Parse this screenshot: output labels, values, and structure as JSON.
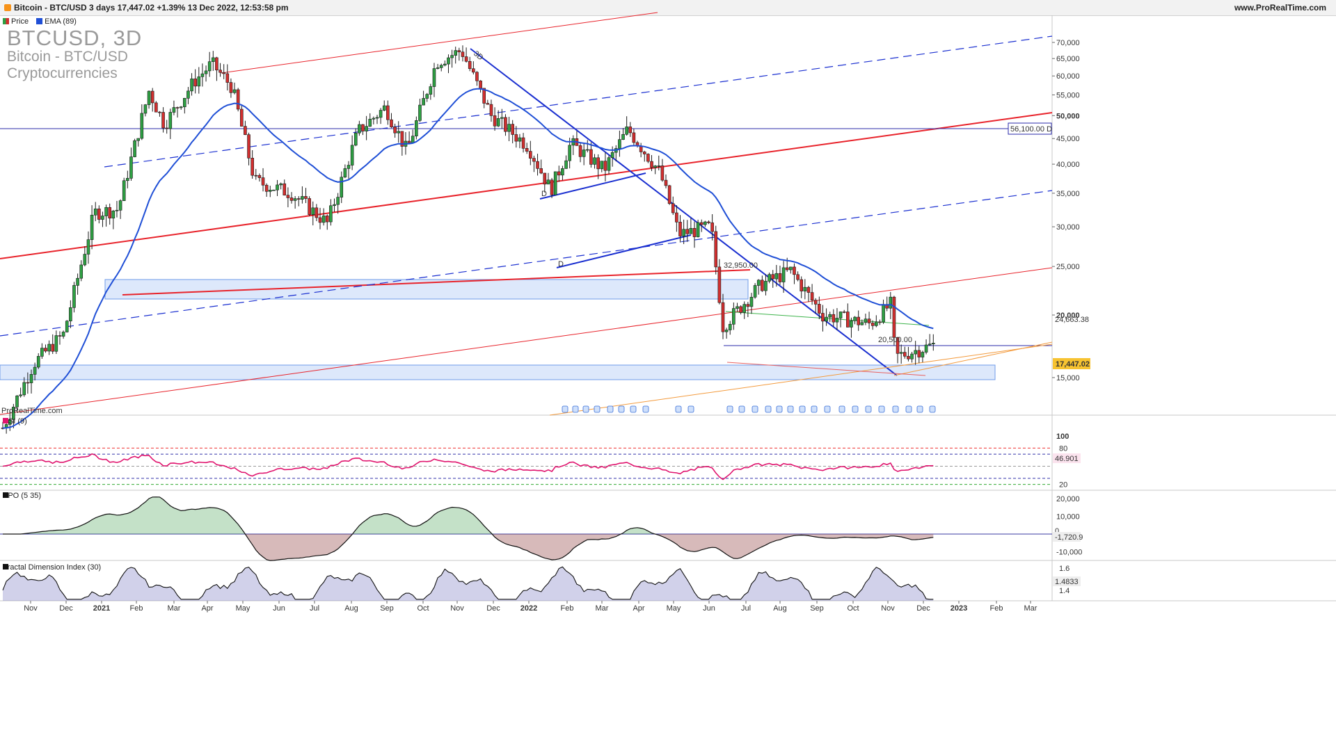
{
  "header": {
    "title": "Bitcoin - BTC/USD 3 days 17,447.02 +1.39% 13 Dec 2022, 12:53:58 pm",
    "site": "www.ProRealTime.com"
  },
  "legend": {
    "price": "Price",
    "ema": "EMA (89)"
  },
  "watermark": {
    "symbol": "BTCUSD, 3D",
    "name": "Bitcoin - BTC/USD",
    "category": "Cryptocurrencies"
  },
  "colors": {
    "up": "#2ea043",
    "down": "#d22f2f",
    "ema": "#1f4fd6",
    "trend_blue": "#1a2fd0",
    "trend_red": "#e8222a",
    "rsi": "#e0146e",
    "zone": "#dde8fb"
  },
  "chart_data": [
    {
      "type": "candlestick",
      "panel": "price",
      "y_scale": "log",
      "ylim": [
        11500,
        72000
      ],
      "yticks": [
        "70,000",
        "65,000",
        "60,000",
        "55,000",
        "50,000",
        "45,000",
        "40,000",
        "35,000",
        "30,000",
        "25,000",
        "20,000",
        "15,000"
      ],
      "xticks": [
        "Nov",
        "Dec",
        "2021",
        "Feb",
        "Mar",
        "Apr",
        "May",
        "Jun",
        "Jul",
        "Aug",
        "Sep",
        "Oct",
        "Nov",
        "Dec",
        "2022",
        "Feb",
        "Mar",
        "Apr",
        "May",
        "Jun",
        "Jul",
        "Aug",
        "Sep",
        "Oct",
        "Nov",
        "Dec",
        "2023",
        "Feb",
        "Mar"
      ],
      "key_closes": [
        {
          "date": "2020-10-20",
          "close": 11900
        },
        {
          "date": "2020-11-15",
          "close": 16000
        },
        {
          "date": "2020-12-10",
          "close": 18300
        },
        {
          "date": "2021-01-05",
          "close": 32000
        },
        {
          "date": "2021-01-25",
          "close": 32500
        },
        {
          "date": "2021-02-20",
          "close": 56000
        },
        {
          "date": "2021-03-05",
          "close": 48000
        },
        {
          "date": "2021-03-30",
          "close": 58500
        },
        {
          "date": "2021-04-14",
          "close": 63500
        },
        {
          "date": "2021-05-01",
          "close": 57000
        },
        {
          "date": "2021-05-20",
          "close": 37000
        },
        {
          "date": "2021-06-20",
          "close": 35000
        },
        {
          "date": "2021-07-20",
          "close": 30500
        },
        {
          "date": "2021-08-15",
          "close": 46500
        },
        {
          "date": "2021-09-07",
          "close": 52000
        },
        {
          "date": "2021-09-25",
          "close": 42500
        },
        {
          "date": "2021-10-20",
          "close": 64000
        },
        {
          "date": "2021-11-10",
          "close": 67500
        },
        {
          "date": "2021-12-05",
          "close": 50000
        },
        {
          "date": "2022-01-05",
          "close": 43500
        },
        {
          "date": "2022-01-24",
          "close": 35500
        },
        {
          "date": "2022-02-10",
          "close": 44000
        },
        {
          "date": "2022-03-10",
          "close": 39000
        },
        {
          "date": "2022-03-30",
          "close": 47000
        },
        {
          "date": "2022-04-26",
          "close": 38500
        },
        {
          "date": "2022-05-12",
          "close": 29000
        },
        {
          "date": "2022-06-08",
          "close": 30000
        },
        {
          "date": "2022-06-18",
          "close": 19000
        },
        {
          "date": "2022-07-20",
          "close": 23000
        },
        {
          "date": "2022-08-14",
          "close": 24500
        },
        {
          "date": "2022-09-10",
          "close": 20000
        },
        {
          "date": "2022-10-20",
          "close": 19200
        },
        {
          "date": "2022-11-06",
          "close": 21000
        },
        {
          "date": "2022-11-10",
          "close": 16500
        },
        {
          "date": "2022-12-13",
          "close": 17447.02
        }
      ],
      "ema_period": 89,
      "annotations": [
        {
          "type": "price_label",
          "text": "32,950.00",
          "value": 32950
        },
        {
          "type": "price_label",
          "text": "20,500.00",
          "value": 20500
        },
        {
          "type": "price_label",
          "text": "56,100.00 D",
          "value": 56100
        },
        {
          "type": "price_label",
          "text": "24,663.38",
          "value": 24663.38
        },
        {
          "type": "last_price",
          "text": "17,447.02",
          "value": 17447.02
        },
        {
          "type": "marker",
          "text": "3D"
        },
        {
          "type": "marker",
          "text": "D"
        },
        {
          "type": "marker",
          "text": "D"
        }
      ],
      "copyright": "ProRealTime.com"
    },
    {
      "type": "line",
      "panel": "rsi",
      "title": "RSI (9)",
      "ylim": [
        0,
        100
      ],
      "yticks": [
        "100",
        "80",
        "20"
      ],
      "last_value": "46.901",
      "levels": [
        80,
        70,
        50,
        30,
        20
      ]
    },
    {
      "type": "area",
      "panel": "apo",
      "title": "APO (5 35)",
      "ylim": [
        -14000,
        26000
      ],
      "yticks": [
        "20,000",
        "10,000",
        "-10,000"
      ],
      "last_value": "-1,720.9",
      "zero_tick": "0"
    },
    {
      "type": "area",
      "panel": "fdi",
      "title": "Fractal Dimension Index (30)",
      "ylim": [
        1.3,
        1.68
      ],
      "yticks": [
        "1.6",
        "1.4"
      ],
      "last_value": "1.4833"
    }
  ]
}
